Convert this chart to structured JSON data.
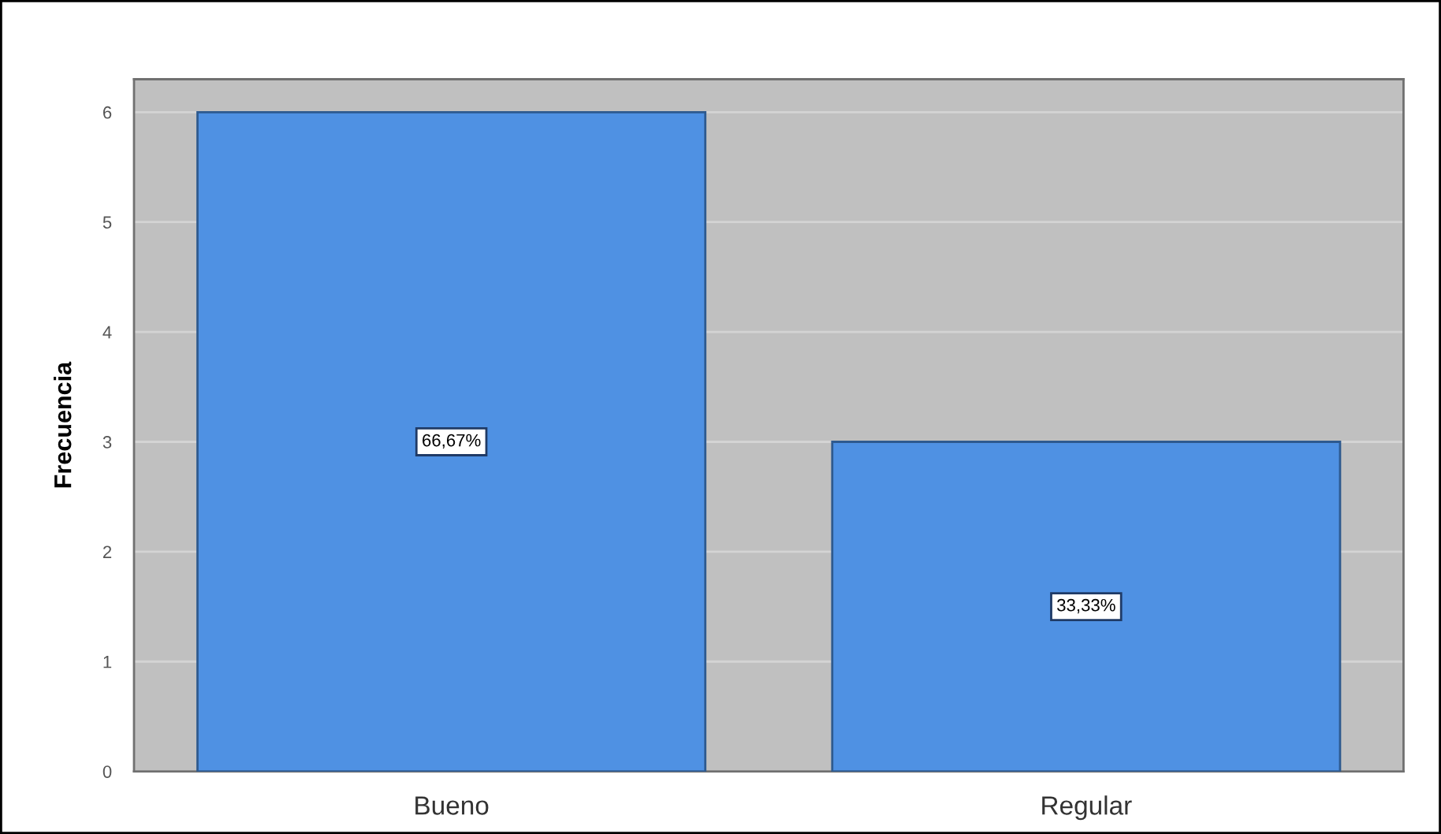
{
  "chart_data": {
    "type": "bar",
    "ylabel": "Frecuencia",
    "categories": [
      "Bueno",
      "Regular"
    ],
    "values": [
      6,
      3
    ],
    "color": "#4f91e3",
    "annotations": [
      "66,67%",
      "33,33%"
    ],
    "ylim": [
      0,
      6.3
    ],
    "yticks": [
      0,
      1,
      2,
      3,
      4,
      5,
      6
    ],
    "grid": "y",
    "legend": false
  }
}
